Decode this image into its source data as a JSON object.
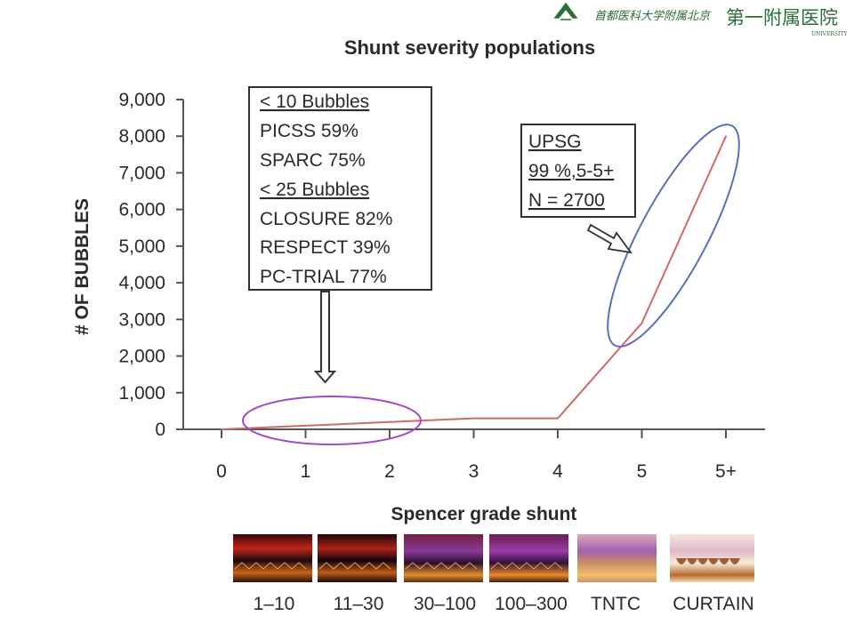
{
  "header": {
    "logo_name": "ribbon-emblem-icon",
    "logo_text_script": "首都医科大学附属北京",
    "logo_text_main": "第一附属医院",
    "logo_subtext": "UNIVERSITY"
  },
  "chart_data": {
    "type": "line",
    "title": "Shunt severity populations",
    "xlabel": "Spencer grade shunt",
    "ylabel": "# OF BUBBLES",
    "categories": [
      "0",
      "1",
      "2",
      "3",
      "4",
      "5",
      "5+"
    ],
    "ylim": [
      0,
      9000
    ],
    "yticks": [
      "9,000",
      "8,000",
      "7,000",
      "6,000",
      "5,000",
      "4,000",
      "3,000",
      "2,000",
      "1,000",
      "0"
    ],
    "series": [
      {
        "values": [
          0,
          100,
          200,
          300,
          300,
          2900,
          8000
        ],
        "color": "#d06a6a"
      }
    ],
    "grid": false,
    "legend": "none",
    "annotations": {
      "box_left": {
        "lines": [
          "< 10 Bubbles",
          "PICSS 59%",
          "SPARC 75%",
          "< 25 Bubbles",
          "CLOSURE 82%",
          "RESPECT 39%",
          "PC-TRIAL 77%"
        ],
        "underlined": [
          true,
          false,
          false,
          true,
          false,
          false,
          false
        ]
      },
      "box_right": {
        "lines": [
          "UPSG",
          "99 %,5-5+",
          "N = 2700"
        ],
        "underlined": [
          true,
          true,
          true
        ]
      },
      "ellipse_low_color": "#a04ac8",
      "ellipse_high_color": "#5a6ec0"
    },
    "thumbnails": [
      "1–10",
      "11–30",
      "30–100",
      "100–300",
      "TNTC",
      "CURTAIN"
    ]
  }
}
